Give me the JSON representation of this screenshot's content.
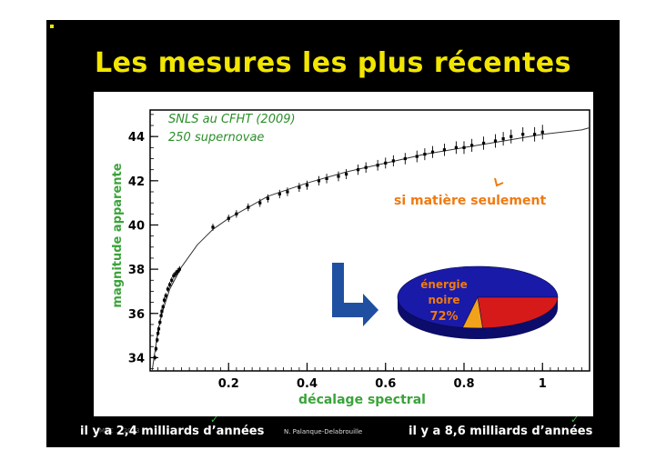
{
  "slide": {
    "title": "Les mesures les plus récentes",
    "footer_left": "il y a 2,4 milliards d’années",
    "footer_right": "il y a 8,6 milliards d’années",
    "credit": "N. Palanque-Delabrouille",
    "credit_faint": "MAC ... 2013"
  },
  "chart_data": {
    "type": "scatter",
    "title": "",
    "annotation_lines": [
      "SNLS au CFHT (2009)",
      "250 supernovae"
    ],
    "xlabel": "décalage spectral",
    "ylabel": "magnitude apparente",
    "xlim": [
      0,
      1.12
    ],
    "ylim": [
      33.4,
      45.2
    ],
    "x_ticks": [
      0.2,
      0.4,
      0.6,
      0.8,
      1
    ],
    "x_tick_labels": [
      "0.2",
      "0.4",
      "0.6",
      "0.8",
      "1"
    ],
    "y_ticks": [
      34,
      36,
      38,
      40,
      42,
      44
    ],
    "y_tick_labels": [
      "34",
      "36",
      "38",
      "40",
      "42",
      "44"
    ],
    "grid": false,
    "series": [
      {
        "x": [
          0.012,
          0.015,
          0.018,
          0.02,
          0.022,
          0.025,
          0.028,
          0.03,
          0.033,
          0.036,
          0.04,
          0.045,
          0.05,
          0.055,
          0.06,
          0.065,
          0.07,
          0.075,
          0.16,
          0.2,
          0.22,
          0.25,
          0.28,
          0.3,
          0.33,
          0.35,
          0.38,
          0.4,
          0.43,
          0.45,
          0.48,
          0.5,
          0.53,
          0.55,
          0.58,
          0.6,
          0.62,
          0.65,
          0.68,
          0.7,
          0.72,
          0.75,
          0.78,
          0.8,
          0.82,
          0.85,
          0.88,
          0.9,
          0.92,
          0.95,
          0.98,
          1.0
        ],
        "y": [
          34.0,
          34.4,
          34.8,
          35.1,
          35.3,
          35.6,
          35.9,
          36.1,
          36.3,
          36.6,
          36.8,
          37.1,
          37.3,
          37.5,
          37.7,
          37.8,
          37.9,
          38.0,
          39.9,
          40.3,
          40.5,
          40.8,
          41.0,
          41.2,
          41.4,
          41.5,
          41.7,
          41.8,
          42.0,
          42.1,
          42.2,
          42.3,
          42.5,
          42.6,
          42.7,
          42.8,
          42.9,
          43.0,
          43.1,
          43.2,
          43.3,
          43.4,
          43.5,
          43.5,
          43.6,
          43.7,
          43.8,
          43.9,
          44.0,
          44.1,
          44.1,
          44.2
        ]
      }
    ],
    "model_curve": {
      "x": [
        0.005,
        0.01,
        0.02,
        0.03,
        0.05,
        0.08,
        0.12,
        0.16,
        0.2,
        0.3,
        0.4,
        0.5,
        0.6,
        0.7,
        0.8,
        0.9,
        1.0,
        1.1,
        1.12
      ],
      "y": [
        33.4,
        34.0,
        35.2,
        36.0,
        37.1,
        38.1,
        39.1,
        39.8,
        40.3,
        41.3,
        41.9,
        42.4,
        42.8,
        43.2,
        43.5,
        43.8,
        44.1,
        44.3,
        44.4
      ]
    },
    "orange_label": "si matière seulement",
    "pie": {
      "center_label_lines": [
        "énergie",
        "noire",
        "72%"
      ],
      "slices": [
        {
          "value": 72,
          "color": "#1a1aa8"
        },
        {
          "value": 24,
          "color": "#d61a1a"
        },
        {
          "value": 4,
          "color": "#f2a21a"
        }
      ]
    },
    "colors": {
      "annotation": "#2a8f2a",
      "axis_label": "#3aa33a",
      "orange": "#f07a10",
      "arrow": "#1f4fa0"
    }
  }
}
